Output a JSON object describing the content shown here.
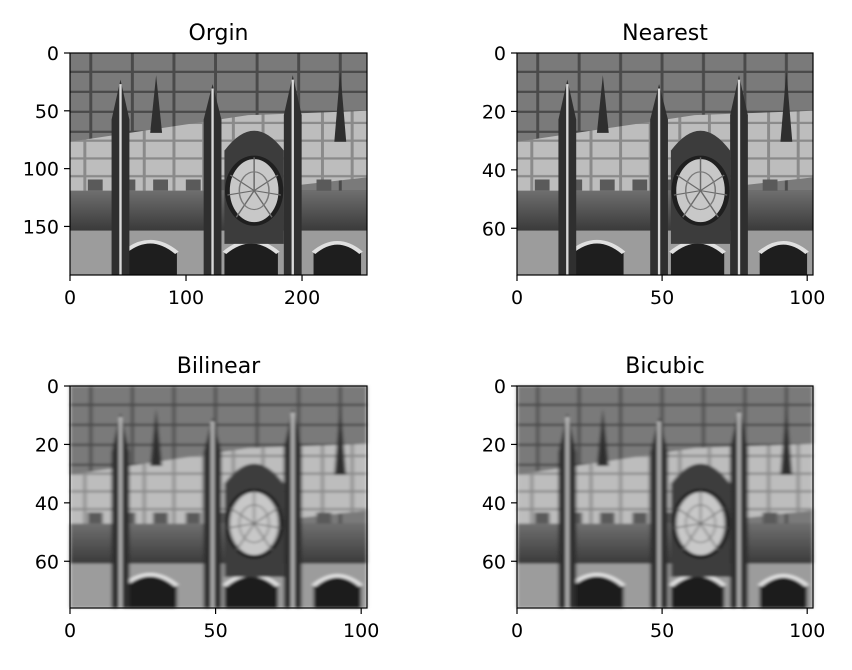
{
  "chart_data": [
    {
      "type": "image",
      "title": "Orgin",
      "xlim": [
        0,
        256
      ],
      "ylim": [
        0,
        192
      ],
      "y_inverted": true,
      "xticks": [
        0,
        100,
        200
      ],
      "yticks": [
        0,
        50,
        100,
        150
      ],
      "grid": false,
      "colormap": "gray"
    },
    {
      "type": "image",
      "title": "Nearest",
      "xlim": [
        0,
        102
      ],
      "ylim": [
        0,
        76
      ],
      "y_inverted": true,
      "xticks": [
        0,
        50,
        100
      ],
      "yticks": [
        0,
        20,
        40,
        60
      ],
      "grid": false,
      "colormap": "gray"
    },
    {
      "type": "image",
      "title": "Bilinear",
      "xlim": [
        0,
        102
      ],
      "ylim": [
        0,
        76
      ],
      "y_inverted": true,
      "xticks": [
        0,
        50,
        100
      ],
      "yticks": [
        0,
        20,
        40,
        60
      ],
      "grid": false,
      "colormap": "gray"
    },
    {
      "type": "image",
      "title": "Bicubic",
      "xlim": [
        0,
        102
      ],
      "ylim": [
        0,
        76
      ],
      "y_inverted": true,
      "xticks": [
        0,
        50,
        100
      ],
      "yticks": [
        0,
        20,
        40,
        60
      ],
      "grid": false,
      "colormap": "gray"
    }
  ]
}
